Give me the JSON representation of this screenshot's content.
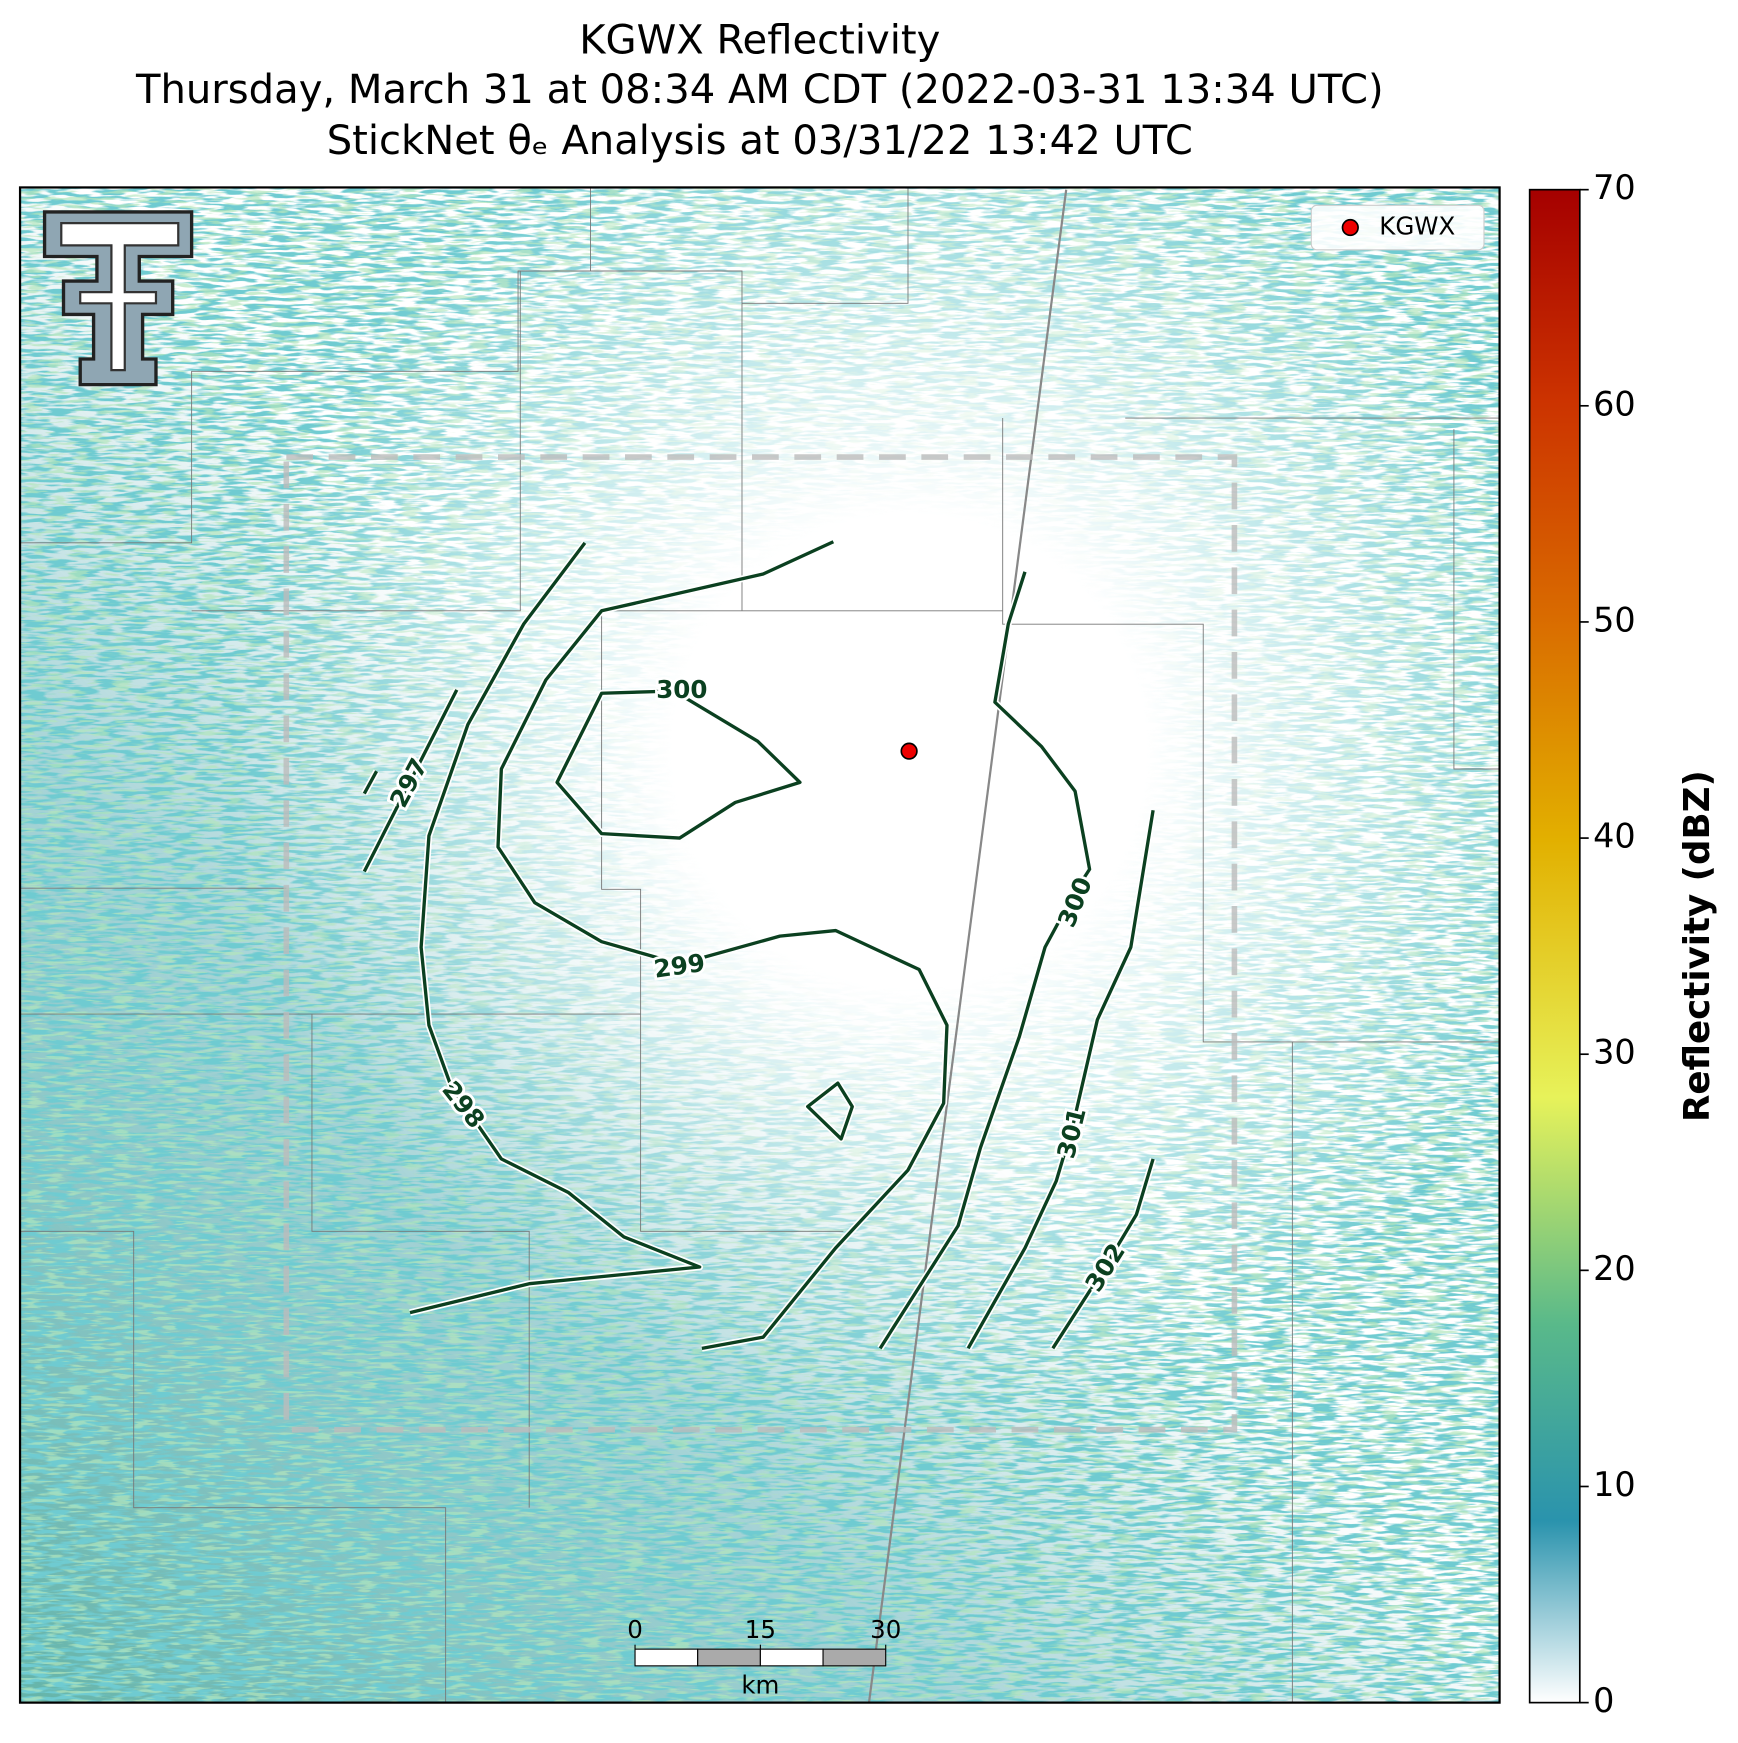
{
  "title": {
    "lines": [
      "KGWX Reflectivity",
      "Thursday, March 31 at 08:34 AM CDT (2022-03-31 13:34 UTC)",
      "StickNet θₑ Analysis at 03/31/22 13:42 UTC"
    ]
  },
  "legend": {
    "label": "KGWX"
  },
  "contour_labels": [
    297,
    298,
    299,
    300,
    300,
    301,
    302
  ],
  "colorbar": {
    "label": "Reflectivity (dBZ)",
    "lim": [
      0,
      70
    ],
    "ticks": [
      0,
      10,
      20,
      30,
      40,
      50,
      60,
      70
    ]
  },
  "scale_bar": {
    "ticks": [
      0,
      15,
      30
    ],
    "unit": "km"
  }
}
